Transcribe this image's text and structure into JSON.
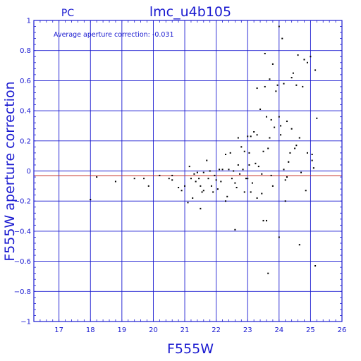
{
  "chart_data": {
    "type": "scatter",
    "title": "lmc_u4b105",
    "subtitle": "PC",
    "xlabel": "F555W",
    "ylabel": "F555W aperture correction",
    "annotation": "Average aperture correction: -0.031",
    "xlim": [
      16.2,
      26.0
    ],
    "ylim": [
      -1.0,
      1.0
    ],
    "xticks": [
      17,
      18,
      19,
      20,
      21,
      22,
      23,
      24,
      25,
      26
    ],
    "yticks": [
      -1,
      -0.8,
      -0.6,
      -0.4,
      -0.2,
      0,
      0.2,
      0.4,
      0.6,
      0.8,
      1
    ],
    "ytick_labels": [
      "−1",
      "−0.8",
      "−0.6",
      "−0.4",
      "−0.2",
      "0",
      "0.2",
      "0.4",
      "0.6",
      "0.8",
      "1"
    ],
    "grid": true,
    "reference_lines": [
      {
        "y": 0,
        "color": "#1a1ad0"
      },
      {
        "y": -0.031,
        "color": "#c83228"
      }
    ],
    "colors": {
      "axes": "#1a1ad0",
      "points": "#000000",
      "average_line": "#c83228"
    },
    "points": [
      [
        18.0,
        -0.19
      ],
      [
        18.2,
        -0.04
      ],
      [
        18.8,
        -0.07
      ],
      [
        19.4,
        -0.05
      ],
      [
        19.7,
        -0.05
      ],
      [
        19.85,
        -0.1
      ],
      [
        20.2,
        -0.03
      ],
      [
        20.5,
        -0.05
      ],
      [
        20.6,
        -0.03
      ],
      [
        20.6,
        -0.06
      ],
      [
        20.8,
        -0.11
      ],
      [
        20.9,
        -0.13
      ],
      [
        21.0,
        -0.1
      ],
      [
        21.1,
        -0.21
      ],
      [
        21.15,
        0.03
      ],
      [
        21.2,
        -0.05
      ],
      [
        21.25,
        -0.18
      ],
      [
        21.3,
        -0.02
      ],
      [
        21.35,
        -0.07
      ],
      [
        21.4,
        -0.01
      ],
      [
        21.45,
        -0.05
      ],
      [
        21.5,
        -0.25
      ],
      [
        21.5,
        -0.1
      ],
      [
        21.55,
        -0.14
      ],
      [
        21.6,
        -0.01
      ],
      [
        21.6,
        -0.13
      ],
      [
        21.7,
        0.07
      ],
      [
        21.75,
        -0.05
      ],
      [
        21.8,
        0.0
      ],
      [
        21.85,
        -0.1
      ],
      [
        21.9,
        -0.14
      ],
      [
        22.0,
        -0.06
      ],
      [
        22.05,
        -0.12
      ],
      [
        22.1,
        0.01
      ],
      [
        22.15,
        -0.07
      ],
      [
        22.2,
        0.01
      ],
      [
        22.3,
        -0.2
      ],
      [
        22.3,
        0.11
      ],
      [
        22.35,
        -0.17
      ],
      [
        22.4,
        0.01
      ],
      [
        22.45,
        0.12
      ],
      [
        22.5,
        -0.05
      ],
      [
        22.55,
        0.0
      ],
      [
        22.6,
        -0.08
      ],
      [
        22.6,
        -0.39
      ],
      [
        22.65,
        -0.11
      ],
      [
        22.7,
        0.04
      ],
      [
        22.7,
        0.22
      ],
      [
        22.75,
        -0.02
      ],
      [
        22.8,
        0.16
      ],
      [
        22.85,
        0.01
      ],
      [
        22.9,
        0.13
      ],
      [
        22.9,
        -0.14
      ],
      [
        23.0,
        0.23
      ],
      [
        23.0,
        -0.05
      ],
      [
        23.05,
        0.12
      ],
      [
        23.1,
        0.23
      ],
      [
        23.1,
        -0.14
      ],
      [
        23.15,
        -0.08
      ],
      [
        23.2,
        0.26
      ],
      [
        23.25,
        0.05
      ],
      [
        23.3,
        0.24
      ],
      [
        23.3,
        -0.18
      ],
      [
        23.35,
        0.03
      ],
      [
        23.4,
        0.41
      ],
      [
        23.45,
        -0.15
      ],
      [
        23.45,
        -0.02
      ],
      [
        23.5,
        0.13
      ],
      [
        23.5,
        -0.33
      ],
      [
        23.55,
        0.56
      ],
      [
        23.6,
        0.36
      ],
      [
        23.6,
        -0.33
      ],
      [
        23.65,
        -0.68
      ],
      [
        23.7,
        0.61
      ],
      [
        23.7,
        0.22
      ],
      [
        23.75,
        0.34
      ],
      [
        23.8,
        -0.1
      ],
      [
        23.85,
        0.29
      ],
      [
        23.9,
        0.53
      ],
      [
        23.95,
        0.57
      ],
      [
        24.0,
        0.36
      ],
      [
        24.0,
        0.96
      ],
      [
        24.0,
        -0.44
      ],
      [
        24.05,
        0.24
      ],
      [
        24.1,
        0.88
      ],
      [
        24.15,
        0.58
      ],
      [
        24.15,
        0.01
      ],
      [
        24.2,
        -0.2
      ],
      [
        24.25,
        0.33
      ],
      [
        24.25,
        -0.04
      ],
      [
        24.3,
        0.06
      ],
      [
        24.35,
        0.12
      ],
      [
        24.4,
        0.28
      ],
      [
        24.45,
        0.65
      ],
      [
        24.5,
        0.15
      ],
      [
        24.55,
        0.57
      ],
      [
        24.6,
        0.77
      ],
      [
        24.65,
        -0.49
      ],
      [
        24.65,
        0.22
      ],
      [
        24.7,
        -0.01
      ],
      [
        24.75,
        0.56
      ],
      [
        24.8,
        0.74
      ],
      [
        24.85,
        -0.13
      ],
      [
        24.9,
        0.72
      ],
      [
        24.9,
        0.12
      ],
      [
        25.0,
        0.76
      ],
      [
        25.05,
        0.11
      ],
      [
        25.05,
        0.07
      ],
      [
        25.1,
        0.02
      ],
      [
        25.15,
        0.67
      ],
      [
        25.15,
        -0.63
      ],
      [
        25.2,
        0.35
      ],
      [
        23.8,
        0.71
      ],
      [
        23.3,
        0.55
      ],
      [
        23.55,
        0.78
      ],
      [
        24.3,
        0.06
      ],
      [
        22.95,
        -0.05
      ],
      [
        23.05,
        0.04
      ],
      [
        21.95,
        -0.03
      ],
      [
        24.05,
        0.3
      ],
      [
        24.2,
        -0.06
      ],
      [
        23.75,
        -0.03
      ],
      [
        24.4,
        0.62
      ],
      [
        23.65,
        0.15
      ],
      [
        24.55,
        0.17
      ]
    ]
  }
}
